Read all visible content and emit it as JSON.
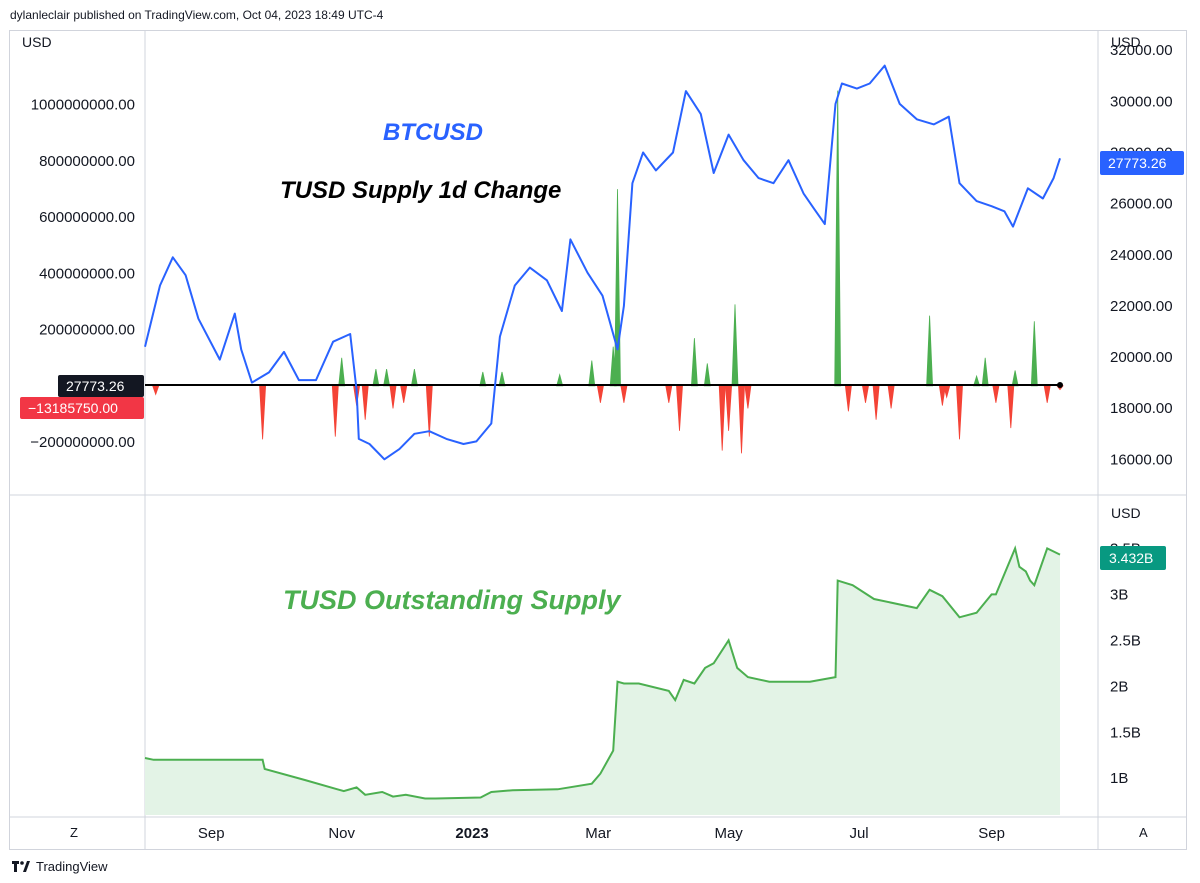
{
  "header": {
    "published": "dylanleclair published on TradingView.com, Oct 04, 2023 18:49 UTC-4"
  },
  "footer": {
    "brand": "TradingView"
  },
  "buttons": {
    "left_scale": "Z",
    "right_scale": "A"
  },
  "colors": {
    "btc_line": "#2962ff",
    "change_up": "#4caf50",
    "change_down": "#f44336",
    "supply_line": "#4caf50",
    "supply_fill": "#e3f3e6",
    "grid_border": "#d1d4dc",
    "btc_badge": "#2962ff",
    "supply_badge": "#089981",
    "price_badge": "#131722",
    "change_badge": "#f23645"
  },
  "chart_data": [
    {
      "type": "line",
      "pane": "top",
      "title": "BTCUSD",
      "currency_left": "USD",
      "currency_right": "USD",
      "right_axis": {
        "ylim": [
          14800,
          32400
        ],
        "ticks": [
          "32000.00",
          "30000.00",
          "28000.00",
          "26000.00",
          "24000.00",
          "22000.00",
          "20000.00",
          "18000.00",
          "16000.00"
        ]
      },
      "last_value_label": "27773.26",
      "x_months": [
        "Sep",
        "Nov",
        "2023",
        "Mar",
        "May",
        "Jul",
        "Sep"
      ],
      "series": [
        {
          "name": "BTCUSD",
          "x": [
            "2022-08-01",
            "2022-08-08",
            "2022-08-14",
            "2022-08-20",
            "2022-08-26",
            "2022-09-05",
            "2022-09-12",
            "2022-09-15",
            "2022-09-20",
            "2022-09-28",
            "2022-10-05",
            "2022-10-12",
            "2022-10-20",
            "2022-10-28",
            "2022-11-05",
            "2022-11-08",
            "2022-11-09",
            "2022-11-14",
            "2022-11-21",
            "2022-11-28",
            "2022-12-05",
            "2022-12-12",
            "2022-12-20",
            "2022-12-28",
            "2023-01-03",
            "2023-01-10",
            "2023-01-14",
            "2023-01-21",
            "2023-01-28",
            "2023-02-05",
            "2023-02-12",
            "2023-02-16",
            "2023-02-24",
            "2023-03-03",
            "2023-03-10",
            "2023-03-13",
            "2023-03-17",
            "2023-03-22",
            "2023-03-28",
            "2023-04-05",
            "2023-04-11",
            "2023-04-18",
            "2023-04-24",
            "2023-05-01",
            "2023-05-08",
            "2023-05-15",
            "2023-05-22",
            "2023-05-29",
            "2023-06-05",
            "2023-06-10",
            "2023-06-15",
            "2023-06-20",
            "2023-06-23",
            "2023-06-30",
            "2023-07-06",
            "2023-07-13",
            "2023-07-20",
            "2023-07-28",
            "2023-08-05",
            "2023-08-12",
            "2023-08-17",
            "2023-08-25",
            "2023-09-01",
            "2023-09-07",
            "2023-09-11",
            "2023-09-18",
            "2023-09-25",
            "2023-09-30",
            "2023-10-03"
          ],
          "y": [
            20400,
            22800,
            23900,
            23200,
            21500,
            19900,
            21700,
            20300,
            19000,
            19400,
            20200,
            19100,
            19100,
            20600,
            20900,
            18700,
            16800,
            16600,
            16000,
            16400,
            17000,
            17100,
            16800,
            16600,
            16700,
            17400,
            20800,
            22800,
            23500,
            23000,
            21800,
            24600,
            23300,
            22400,
            20300,
            22000,
            26800,
            28000,
            27300,
            28000,
            30400,
            29500,
            27200,
            28700,
            27700,
            27000,
            26800,
            27700,
            26400,
            25800,
            25200,
            29900,
            30700,
            30500,
            30700,
            31400,
            29900,
            29300,
            29100,
            29400,
            26800,
            26100,
            25900,
            25700,
            25100,
            26600,
            26200,
            27000,
            27773.26
          ]
        }
      ]
    },
    {
      "type": "bar",
      "pane": "top",
      "title": "TUSD Supply 1d Change",
      "left_axis": {
        "ylim": [
          -370000000,
          1230000000
        ],
        "ticks": [
          "1000000000.00",
          "800000000.00",
          "600000000.00",
          "400000000.00",
          "200000000.00",
          "0",
          "-200000000.00"
        ]
      },
      "last_value_label": "−13185750.00",
      "series": [
        {
          "name": "TUSD Supply 1d Change",
          "x": [
            "2022-08-06",
            "2022-09-25",
            "2022-10-29",
            "2022-11-01",
            "2022-11-08",
            "2022-11-12",
            "2022-11-17",
            "2022-11-22",
            "2022-11-25",
            "2022-11-30",
            "2022-12-05",
            "2022-12-12",
            "2023-01-06",
            "2023-01-15",
            "2023-02-11",
            "2023-02-26",
            "2023-03-02",
            "2023-03-08",
            "2023-03-10",
            "2023-03-13",
            "2023-04-03",
            "2023-04-08",
            "2023-04-15",
            "2023-04-21",
            "2023-04-28",
            "2023-05-01",
            "2023-05-04",
            "2023-05-07",
            "2023-05-10",
            "2023-06-21",
            "2023-06-26",
            "2023-07-04",
            "2023-07-09",
            "2023-07-16",
            "2023-08-03",
            "2023-08-09",
            "2023-08-11",
            "2023-08-17",
            "2023-08-25",
            "2023-08-29",
            "2023-09-03",
            "2023-09-10",
            "2023-09-12",
            "2023-09-21",
            "2023-09-27",
            "2023-10-03"
          ],
          "values": [
            -30000000,
            -190000000,
            -180000000,
            100000000,
            -70000000,
            -120000000,
            60000000,
            60000000,
            -80000000,
            -60000000,
            60000000,
            -180000000,
            50000000,
            50000000,
            40000000,
            90000000,
            -60000000,
            140000000,
            700000000,
            -60000000,
            -60000000,
            -160000000,
            170000000,
            80000000,
            -230000000,
            -160000000,
            290000000,
            -240000000,
            -80000000,
            1050000000,
            -90000000,
            -60000000,
            -120000000,
            -80000000,
            250000000,
            -70000000,
            -40000000,
            -190000000,
            35000000,
            100000000,
            -60000000,
            -150000000,
            55000000,
            230000000,
            -60000000,
            -13185750
          ]
        }
      ]
    },
    {
      "type": "area",
      "pane": "bottom",
      "title": "TUSD Outstanding Supply",
      "currency_right": "USD",
      "right_axis": {
        "ylim": [
          0.6,
          3.7
        ],
        "ticks": [
          "3.5B",
          "3B",
          "2.5B",
          "2B",
          "1.5B",
          "1B"
        ]
      },
      "last_value_label": "3.432B",
      "series": [
        {
          "name": "TUSD Outstanding Supply",
          "x": [
            "2022-08-01",
            "2022-08-05",
            "2022-08-20",
            "2022-09-15",
            "2022-09-25",
            "2022-09-26",
            "2022-10-15",
            "2022-10-30",
            "2022-11-02",
            "2022-11-08",
            "2022-11-12",
            "2022-11-20",
            "2022-11-25",
            "2022-12-01",
            "2022-12-10",
            "2022-12-15",
            "2023-01-05",
            "2023-01-10",
            "2023-01-20",
            "2023-02-10",
            "2023-02-26",
            "2023-03-02",
            "2023-03-08",
            "2023-03-10",
            "2023-03-13",
            "2023-03-20",
            "2023-04-03",
            "2023-04-06",
            "2023-04-10",
            "2023-04-15",
            "2023-04-20",
            "2023-04-24",
            "2023-05-01",
            "2023-05-05",
            "2023-05-10",
            "2023-05-20",
            "2023-06-08",
            "2023-06-20",
            "2023-06-21",
            "2023-06-28",
            "2023-07-08",
            "2023-07-28",
            "2023-08-03",
            "2023-08-09",
            "2023-08-17",
            "2023-08-25",
            "2023-09-01",
            "2023-09-03",
            "2023-09-12",
            "2023-09-14",
            "2023-09-17",
            "2023-09-19",
            "2023-09-21",
            "2023-09-27",
            "2023-10-03"
          ],
          "values": [
            1.22,
            1.2,
            1.2,
            1.2,
            1.2,
            1.1,
            0.98,
            0.88,
            0.86,
            0.9,
            0.82,
            0.85,
            0.8,
            0.82,
            0.78,
            0.78,
            0.79,
            0.85,
            0.87,
            0.88,
            0.94,
            1.05,
            1.3,
            2.05,
            2.03,
            2.03,
            1.95,
            1.85,
            2.07,
            2.03,
            2.2,
            2.25,
            2.5,
            2.2,
            2.1,
            2.05,
            2.05,
            2.1,
            3.15,
            3.1,
            2.95,
            2.85,
            3.05,
            2.98,
            2.75,
            2.8,
            3.0,
            3.0,
            3.5,
            3.3,
            3.25,
            3.15,
            3.1,
            3.5,
            3.432
          ]
        }
      ]
    }
  ]
}
